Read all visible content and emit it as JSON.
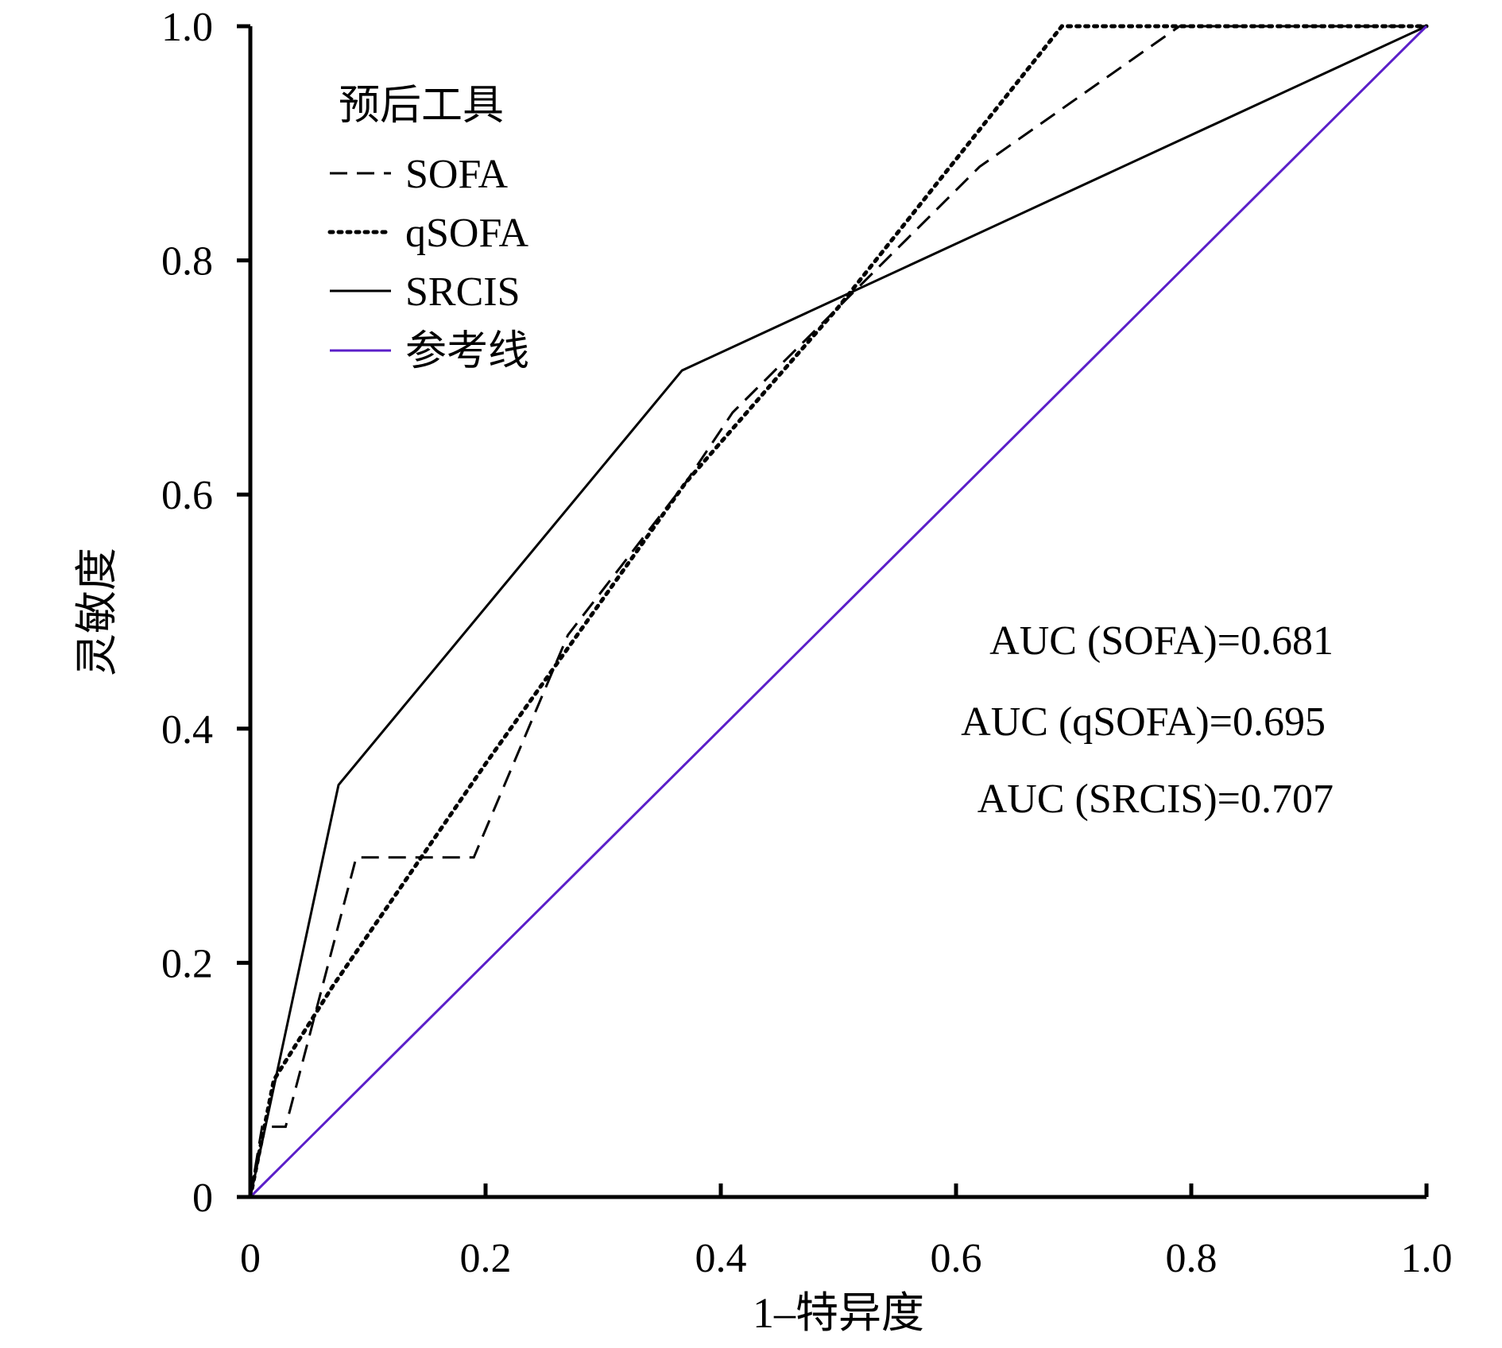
{
  "chart_data": {
    "type": "line",
    "title": "",
    "xlabel": "1–特异度",
    "ylabel": "灵敏度",
    "xlim": [
      0,
      1
    ],
    "ylim": [
      0,
      1
    ],
    "xticks": [
      "0",
      "0.2",
      "0.4",
      "0.6",
      "0.8",
      "1.0"
    ],
    "yticks": [
      "0",
      "0.2",
      "0.4",
      "0.6",
      "0.8",
      "1.0"
    ],
    "grid": false,
    "legend": {
      "title": "预后工具",
      "position": "top-left",
      "entries": [
        "SOFA",
        "qSOFA",
        "SRCIS",
        "参考线"
      ]
    },
    "series": [
      {
        "name": "SOFA",
        "style": "dashed",
        "color": "#000000",
        "x": [
          0,
          0.01,
          0.03,
          0.09,
          0.19,
          0.27,
          0.37,
          0.41,
          0.5,
          0.62,
          0.79,
          1.0
        ],
        "y": [
          0,
          0.06,
          0.06,
          0.29,
          0.29,
          0.48,
          0.61,
          0.67,
          0.76,
          0.88,
          1.0,
          1.0
        ]
      },
      {
        "name": "qSOFA",
        "style": "dotted",
        "color": "#000000",
        "x": [
          0,
          0.02,
          0.07,
          0.2,
          0.37,
          0.5,
          0.69,
          1.0
        ],
        "y": [
          0,
          0.1,
          0.18,
          0.37,
          0.61,
          0.76,
          1.0,
          1.0
        ]
      },
      {
        "name": "SRCIS",
        "style": "solid",
        "color": "#000000",
        "x": [
          0,
          0.075,
          0.367,
          1.0
        ],
        "y": [
          0,
          0.352,
          0.706,
          1.0
        ]
      },
      {
        "name": "参考线",
        "style": "solid",
        "color": "#5b1fc9",
        "x": [
          0,
          1
        ],
        "y": [
          0,
          1
        ]
      }
    ],
    "annotations": [
      "AUC (SOFA)=0.681",
      "AUC (qSOFA)=0.695",
      "AUC (SRCIS)=0.707"
    ]
  }
}
